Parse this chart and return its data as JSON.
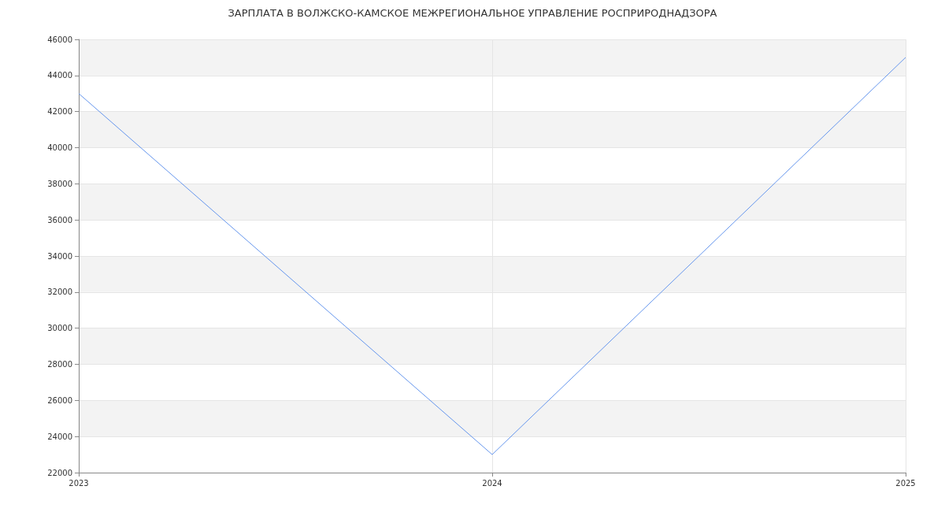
{
  "chart_data": {
    "type": "line",
    "title": "ЗАРПЛАТА В ВОЛЖСКО-КАМСКОЕ МЕЖРЕГИОНАЛЬНОЕ УПРАВЛЕНИЕ РОСПРИРОДНАДЗОРА",
    "x": [
      2023,
      2024,
      2025
    ],
    "series": [
      {
        "color": "#6495ed",
        "values": [
          43000,
          23000,
          45000
        ]
      }
    ],
    "xlim": [
      2023,
      2025
    ],
    "xticks": [
      2023,
      2024,
      2025
    ],
    "ylim": [
      22000,
      46000
    ],
    "yticks": [
      22000,
      24000,
      26000,
      28000,
      30000,
      32000,
      34000,
      36000,
      38000,
      40000,
      42000,
      44000,
      46000
    ],
    "grid": true,
    "marker": "none",
    "line_style": "solid"
  }
}
